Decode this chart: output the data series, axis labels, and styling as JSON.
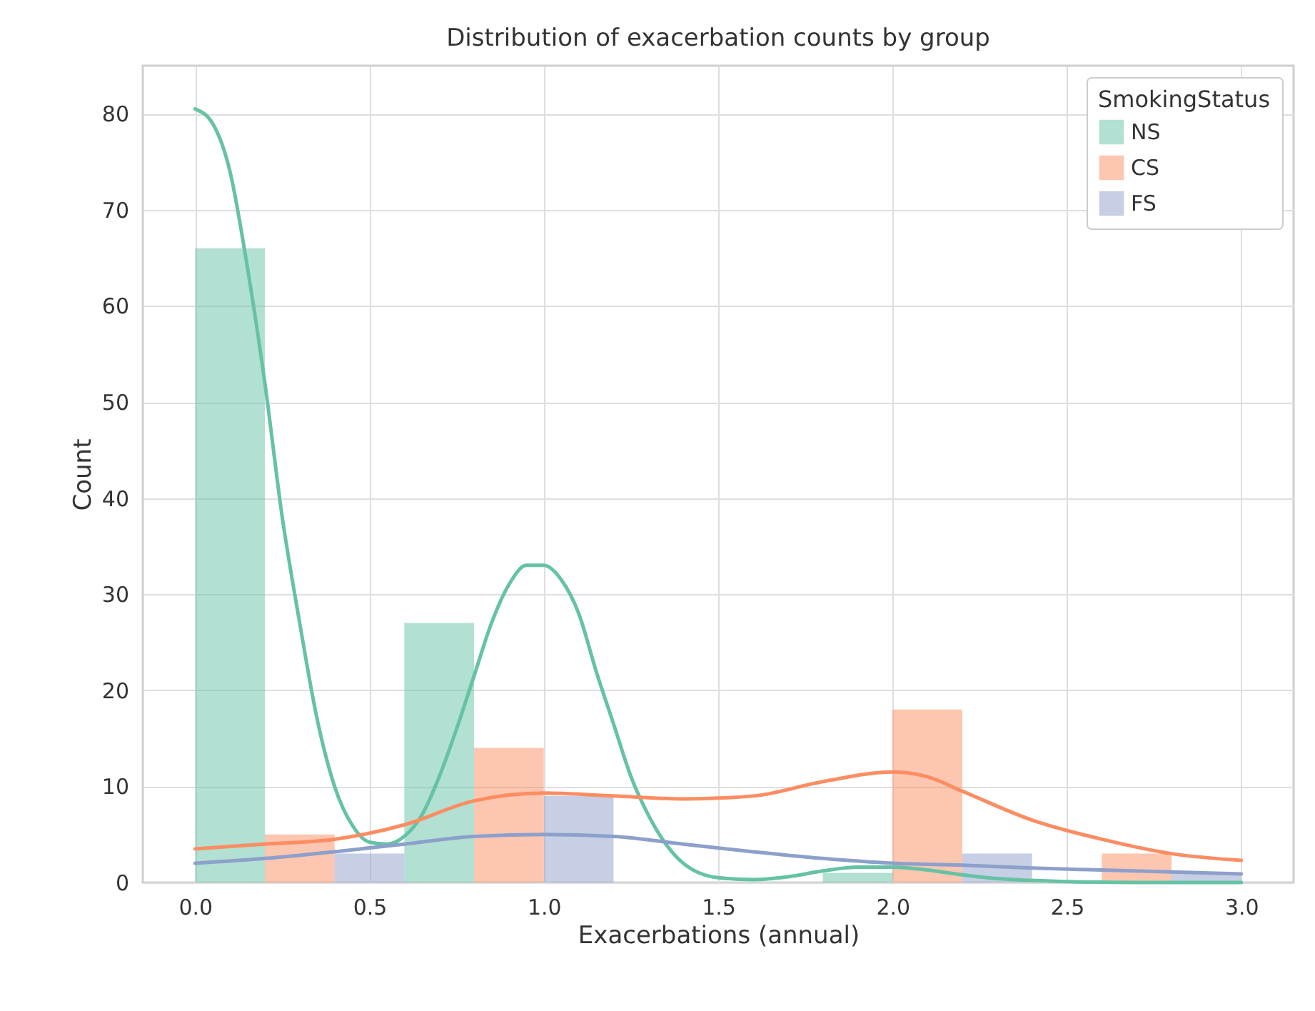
{
  "chart_data": {
    "type": "histogram",
    "title": "Distribution of exacerbation counts by group",
    "xlabel": "Exacerbations (annual)",
    "ylabel": "Count",
    "legend_title": "SmokingStatus",
    "bins": [
      0,
      0.6,
      1.2,
      1.8,
      2.4,
      3.0
    ],
    "series": [
      {
        "name": "NS",
        "color": "#66c2a5",
        "values": [
          66,
          27,
          0,
          1,
          0
        ]
      },
      {
        "name": "CS",
        "color": "#fc8d62",
        "values": [
          5,
          14,
          0,
          18,
          3
        ]
      },
      {
        "name": "FS",
        "color": "#8da0cb",
        "values": [
          3,
          9,
          0,
          3,
          1
        ]
      },
      {
        "type": "line",
        "color": "#66c2a5",
        "x": [
          0,
          0.05,
          0.1,
          0.15,
          0.2,
          0.25,
          0.3,
          0.35,
          0.4,
          0.45,
          0.5,
          0.55,
          0.6,
          0.65,
          0.7,
          0.75,
          0.8,
          0.85,
          0.9,
          0.95,
          1.0,
          1.05,
          1.1,
          1.15,
          1.2,
          1.25,
          1.3,
          1.35,
          1.4,
          1.5,
          1.6,
          1.7,
          1.8,
          1.9,
          2.0,
          2.1,
          2.2,
          2.3,
          2.5,
          2.7,
          3.0
        ],
        "values": [
          80.5,
          79,
          74,
          64,
          52,
          38,
          27,
          17,
          10,
          6,
          4.2,
          4,
          4.8,
          7,
          11,
          16,
          21.5,
          27,
          31,
          33,
          33,
          31.5,
          28,
          22,
          16.5,
          11,
          7,
          4,
          2,
          0.5,
          0.3,
          0.6,
          1.2,
          1.6,
          1.6,
          1.3,
          0.8,
          0.4,
          0.1,
          0,
          0
        ]
      },
      {
        "type": "line",
        "color": "#fc8d62",
        "x": [
          0,
          0.2,
          0.4,
          0.6,
          0.8,
          1.0,
          1.2,
          1.4,
          1.6,
          1.8,
          2.0,
          2.1,
          2.2,
          2.4,
          2.6,
          2.8,
          3.0
        ],
        "values": [
          3.5,
          4,
          4.5,
          6,
          8.5,
          9.3,
          9,
          8.7,
          9,
          10.5,
          11.5,
          11,
          9.5,
          6.5,
          4.5,
          3,
          2.3
        ]
      },
      {
        "type": "line",
        "color": "#8da0cb",
        "x": [
          0,
          0.2,
          0.4,
          0.6,
          0.8,
          1.0,
          1.2,
          1.4,
          1.6,
          1.8,
          2.0,
          2.2,
          2.4,
          2.6,
          2.8,
          3.0
        ],
        "values": [
          2,
          2.5,
          3.2,
          4,
          4.8,
          5,
          4.8,
          4,
          3.2,
          2.5,
          2,
          1.8,
          1.5,
          1.3,
          1.1,
          0.9
        ]
      }
    ],
    "xlim": [
      -0.15,
      3.15
    ],
    "ylim": [
      0,
      85
    ],
    "xticks": [
      {
        "value": 0,
        "label": "0.0"
      },
      {
        "value": 0.5,
        "label": "0.5"
      },
      {
        "value": 1,
        "label": "1.0"
      },
      {
        "value": 1.5,
        "label": "1.5"
      },
      {
        "value": 2,
        "label": "2.0"
      },
      {
        "value": 2.5,
        "label": "2.5"
      },
      {
        "value": 3,
        "label": "3.0"
      }
    ],
    "yticks": [
      0,
      10,
      20,
      30,
      40,
      50,
      60,
      70,
      80
    ],
    "grid": true,
    "legend": "top right"
  }
}
